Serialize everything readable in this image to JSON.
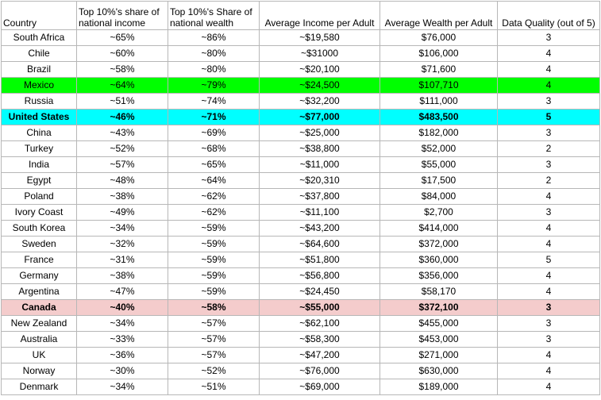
{
  "table": {
    "headers": [
      "Country",
      "Top 10%'s share of national income",
      "Top 10%'s Share of national wealth",
      "Average Income per Adult",
      "Average Wealth per Adult",
      "Data Quality (out of 5)"
    ],
    "rows": [
      [
        "South Africa",
        "~65%",
        "~86%",
        "~$19,580",
        "$76,000",
        "3"
      ],
      [
        "Chile",
        "~60%",
        "~80%",
        "~$31000",
        "$106,000",
        "4"
      ],
      [
        "Brazil",
        "~58%",
        "~80%",
        "~$20,100",
        "$71,600",
        "4"
      ],
      [
        "Mexico",
        "~64%",
        "~79%",
        "~$24,500",
        "$107,710",
        "4"
      ],
      [
        "Russia",
        "~51%",
        "~74%",
        "~$32,200",
        "$111,000",
        "3"
      ],
      [
        "United States",
        "~46%",
        "~71%",
        "~$77,000",
        "$483,500",
        "5"
      ],
      [
        "China",
        "~43%",
        "~69%",
        "~$25,000",
        "$182,000",
        "3"
      ],
      [
        "Turkey",
        "~52%",
        "~68%",
        "~$38,800",
        "$52,000",
        "2"
      ],
      [
        "India",
        "~57%",
        "~65%",
        "~$11,000",
        "$55,000",
        "3"
      ],
      [
        "Egypt",
        "~48%",
        "~64%",
        "~$20,310",
        "$17,500",
        "2"
      ],
      [
        "Poland",
        "~38%",
        "~62%",
        "~$37,800",
        "$84,000",
        "4"
      ],
      [
        "Ivory Coast",
        "~49%",
        "~62%",
        "~$11,100",
        "$2,700",
        "3"
      ],
      [
        "South Korea",
        "~34%",
        "~59%",
        "~$43,200",
        "$414,000",
        "4"
      ],
      [
        "Sweden",
        "~32%",
        "~59%",
        "~$64,600",
        "$372,000",
        "4"
      ],
      [
        "France",
        "~31%",
        "~59%",
        "~$51,800",
        "$360,000",
        "5"
      ],
      [
        "Germany",
        "~38%",
        "~59%",
        "~$56,800",
        "$356,000",
        "4"
      ],
      [
        "Argentina",
        "~47%",
        "~59%",
        "~$24,450",
        "$58,170",
        "4"
      ],
      [
        "Canada",
        "~40%",
        "~58%",
        "~$55,000",
        "$372,100",
        "3"
      ],
      [
        "New Zealand",
        "~34%",
        "~57%",
        "~$62,100",
        "$455,000",
        "3"
      ],
      [
        "Australia",
        "~33%",
        "~57%",
        "~$58,300",
        "$453,000",
        "3"
      ],
      [
        "UK",
        "~36%",
        "~57%",
        "~$47,200",
        "$271,000",
        "4"
      ],
      [
        "Norway",
        "~30%",
        "~52%",
        "~$76,000",
        "$630,000",
        "4"
      ],
      [
        "Denmark",
        "~34%",
        "~51%",
        "~$69,000",
        "$189,000",
        "4"
      ]
    ],
    "row_highlights": {
      "Mexico": "#00ff00",
      "United States": "#00ffff",
      "Canada": "#f4cccc"
    },
    "gridline_color": "#b7b7b7"
  }
}
